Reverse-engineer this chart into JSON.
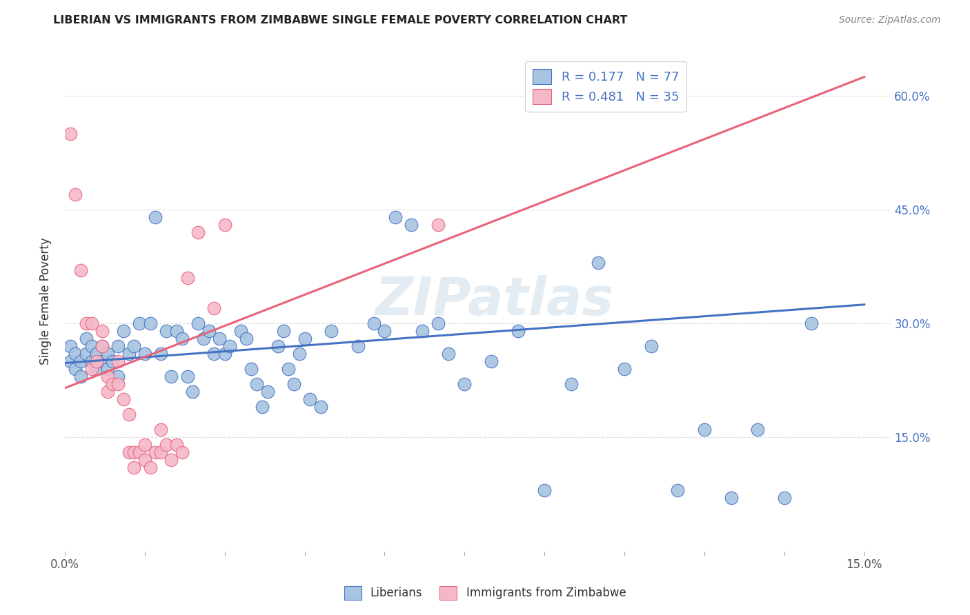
{
  "title": "LIBERIAN VS IMMIGRANTS FROM ZIMBABWE SINGLE FEMALE POVERTY CORRELATION CHART",
  "source": "Source: ZipAtlas.com",
  "ylabel": "Single Female Poverty",
  "ylabel_right_labels": [
    "60.0%",
    "45.0%",
    "30.0%",
    "15.0%"
  ],
  "ylabel_right_values": [
    0.6,
    0.45,
    0.3,
    0.15
  ],
  "watermark": "ZIPatlas",
  "blue_color": "#a8c4e0",
  "pink_color": "#f4b8c8",
  "blue_line_color": "#4472c4",
  "pink_line_color": "#e8637a",
  "background_color": "#ffffff",
  "grid_color": "#dddddd",
  "blue_scatter": [
    [
      0.001,
      0.25
    ],
    [
      0.001,
      0.27
    ],
    [
      0.002,
      0.26
    ],
    [
      0.002,
      0.24
    ],
    [
      0.003,
      0.25
    ],
    [
      0.003,
      0.23
    ],
    [
      0.004,
      0.26
    ],
    [
      0.004,
      0.28
    ],
    [
      0.005,
      0.25
    ],
    [
      0.005,
      0.27
    ],
    [
      0.006,
      0.24
    ],
    [
      0.006,
      0.26
    ],
    [
      0.007,
      0.25
    ],
    [
      0.007,
      0.27
    ],
    [
      0.008,
      0.26
    ],
    [
      0.008,
      0.24
    ],
    [
      0.009,
      0.25
    ],
    [
      0.01,
      0.27
    ],
    [
      0.01,
      0.23
    ],
    [
      0.011,
      0.29
    ],
    [
      0.012,
      0.26
    ],
    [
      0.013,
      0.27
    ],
    [
      0.014,
      0.3
    ],
    [
      0.015,
      0.26
    ],
    [
      0.016,
      0.3
    ],
    [
      0.017,
      0.44
    ],
    [
      0.018,
      0.26
    ],
    [
      0.019,
      0.29
    ],
    [
      0.02,
      0.23
    ],
    [
      0.021,
      0.29
    ],
    [
      0.022,
      0.28
    ],
    [
      0.023,
      0.23
    ],
    [
      0.024,
      0.21
    ],
    [
      0.025,
      0.3
    ],
    [
      0.026,
      0.28
    ],
    [
      0.027,
      0.29
    ],
    [
      0.028,
      0.26
    ],
    [
      0.029,
      0.28
    ],
    [
      0.03,
      0.26
    ],
    [
      0.031,
      0.27
    ],
    [
      0.033,
      0.29
    ],
    [
      0.034,
      0.28
    ],
    [
      0.035,
      0.24
    ],
    [
      0.036,
      0.22
    ],
    [
      0.037,
      0.19
    ],
    [
      0.038,
      0.21
    ],
    [
      0.04,
      0.27
    ],
    [
      0.041,
      0.29
    ],
    [
      0.042,
      0.24
    ],
    [
      0.043,
      0.22
    ],
    [
      0.044,
      0.26
    ],
    [
      0.045,
      0.28
    ],
    [
      0.046,
      0.2
    ],
    [
      0.048,
      0.19
    ],
    [
      0.05,
      0.29
    ],
    [
      0.055,
      0.27
    ],
    [
      0.058,
      0.3
    ],
    [
      0.06,
      0.29
    ],
    [
      0.062,
      0.44
    ],
    [
      0.065,
      0.43
    ],
    [
      0.067,
      0.29
    ],
    [
      0.07,
      0.3
    ],
    [
      0.072,
      0.26
    ],
    [
      0.075,
      0.22
    ],
    [
      0.08,
      0.25
    ],
    [
      0.085,
      0.29
    ],
    [
      0.09,
      0.08
    ],
    [
      0.095,
      0.22
    ],
    [
      0.1,
      0.38
    ],
    [
      0.105,
      0.24
    ],
    [
      0.11,
      0.27
    ],
    [
      0.115,
      0.08
    ],
    [
      0.12,
      0.16
    ],
    [
      0.125,
      0.07
    ],
    [
      0.13,
      0.16
    ],
    [
      0.135,
      0.07
    ],
    [
      0.14,
      0.3
    ]
  ],
  "pink_scatter": [
    [
      0.001,
      0.55
    ],
    [
      0.002,
      0.47
    ],
    [
      0.003,
      0.37
    ],
    [
      0.004,
      0.3
    ],
    [
      0.005,
      0.3
    ],
    [
      0.005,
      0.24
    ],
    [
      0.006,
      0.25
    ],
    [
      0.007,
      0.29
    ],
    [
      0.007,
      0.27
    ],
    [
      0.008,
      0.23
    ],
    [
      0.008,
      0.21
    ],
    [
      0.009,
      0.22
    ],
    [
      0.01,
      0.25
    ],
    [
      0.01,
      0.22
    ],
    [
      0.011,
      0.2
    ],
    [
      0.012,
      0.18
    ],
    [
      0.012,
      0.13
    ],
    [
      0.013,
      0.13
    ],
    [
      0.013,
      0.11
    ],
    [
      0.014,
      0.13
    ],
    [
      0.015,
      0.14
    ],
    [
      0.015,
      0.12
    ],
    [
      0.016,
      0.11
    ],
    [
      0.017,
      0.13
    ],
    [
      0.018,
      0.13
    ],
    [
      0.018,
      0.16
    ],
    [
      0.019,
      0.14
    ],
    [
      0.02,
      0.12
    ],
    [
      0.021,
      0.14
    ],
    [
      0.022,
      0.13
    ],
    [
      0.023,
      0.36
    ],
    [
      0.025,
      0.42
    ],
    [
      0.028,
      0.32
    ],
    [
      0.03,
      0.43
    ],
    [
      0.07,
      0.43
    ]
  ],
  "blue_trend_x": [
    0.0,
    0.15
  ],
  "blue_trend_y": [
    0.248,
    0.325
  ],
  "pink_trend_x": [
    0.0,
    0.15
  ],
  "pink_trend_y": [
    0.215,
    0.625
  ],
  "xlim": [
    0.0,
    0.155
  ],
  "ylim": [
    0.0,
    0.66
  ],
  "figsize": [
    14.06,
    8.92
  ],
  "dpi": 100
}
